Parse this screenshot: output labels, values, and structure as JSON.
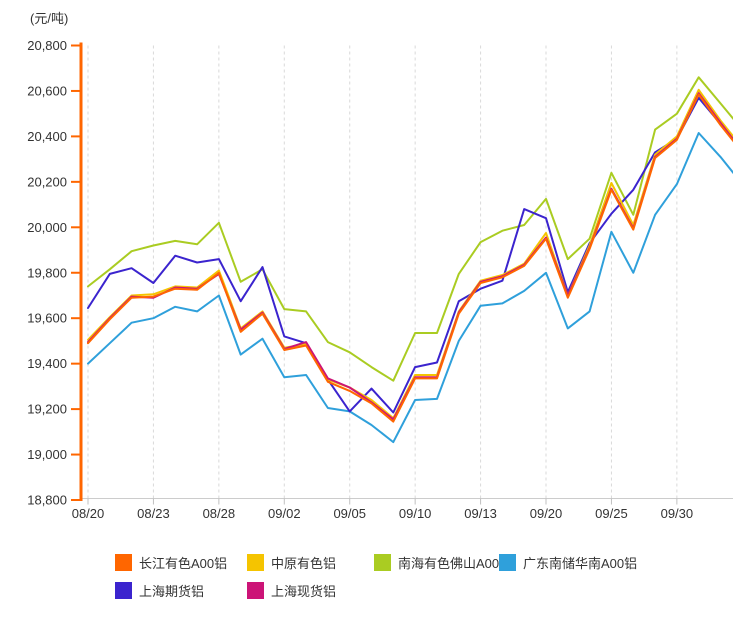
{
  "chart": {
    "unit_label": "(元/吨)"
  },
  "chart_data": {
    "type": "line",
    "title": "",
    "xlabel": "",
    "ylabel": "(元/吨)",
    "grid": "vertical-dashed",
    "legend_position": "bottom",
    "y_axis": {
      "min": 18800,
      "max": 20800,
      "step": 200,
      "tick_labels": [
        "20,800",
        "20,600",
        "20,400",
        "20,200",
        "20,000",
        "19,800",
        "19,600",
        "19,400",
        "19,200",
        "19,000",
        "18,800"
      ],
      "axis_color": "#FF6600",
      "label_color": "#333333"
    },
    "x_axis": {
      "tick_labels": [
        "08/20",
        "08/23",
        "08/28",
        "09/02",
        "09/05",
        "09/10",
        "09/13",
        "09/20",
        "09/25",
        "09/30"
      ],
      "tick_point_indices": [
        0,
        3,
        6,
        9,
        12,
        15,
        18,
        21,
        24,
        27
      ],
      "baseline_color": "#cccccc",
      "label_color": "#333333"
    },
    "n_points": 31,
    "series": [
      {
        "name": "长江有色A00铝",
        "color": "#FF6600",
        "values": [
          19490,
          19595,
          19690,
          19695,
          19730,
          19725,
          19800,
          19540,
          19620,
          19460,
          19480,
          19320,
          19280,
          19225,
          19145,
          19335,
          19335,
          19620,
          19755,
          19780,
          19830,
          19950,
          19690,
          19905,
          20165,
          19990,
          20305,
          20385,
          20585,
          20450,
          20330
        ]
      },
      {
        "name": "中原有色铝",
        "color": "#F5C400",
        "values": [
          19505,
          19605,
          19700,
          19705,
          19740,
          19735,
          19810,
          19555,
          19630,
          19470,
          19485,
          19330,
          19295,
          19240,
          19160,
          19350,
          19350,
          19630,
          19765,
          19790,
          19840,
          19975,
          19700,
          19920,
          20195,
          20010,
          20320,
          20400,
          20605,
          20470,
          20350
        ]
      },
      {
        "name": "南海有色佛山A00铝",
        "color": "#AACC22",
        "values": [
          19740,
          19815,
          19895,
          19920,
          19940,
          19925,
          20020,
          19760,
          19815,
          19640,
          19630,
          19495,
          19450,
          19385,
          19325,
          19535,
          19535,
          19795,
          19935,
          19985,
          20010,
          20125,
          19860,
          19950,
          20240,
          20055,
          20430,
          20500,
          20660,
          20545,
          20430
        ]
      },
      {
        "name": "广东南储华南A00铝",
        "color": "#2FA0DB",
        "values": [
          19400,
          19490,
          19580,
          19600,
          19650,
          19630,
          19700,
          19440,
          19510,
          19340,
          19350,
          19205,
          19190,
          19130,
          19055,
          19240,
          19245,
          19500,
          19655,
          19665,
          19720,
          19800,
          19555,
          19630,
          19980,
          19800,
          20055,
          20190,
          20415,
          20310,
          20190
        ]
      },
      {
        "name": "上海期货铝",
        "color": "#3B24CE",
        "values": [
          19645,
          19795,
          19820,
          19755,
          19875,
          19845,
          19860,
          19675,
          19825,
          19520,
          19490,
          19330,
          19190,
          19290,
          19185,
          19385,
          19405,
          19675,
          19730,
          19765,
          20080,
          20040,
          19715,
          19930,
          20060,
          20165,
          20330,
          20390,
          20570,
          20455,
          20340
        ]
      },
      {
        "name": "上海现货铝",
        "color": "#CC1477",
        "values": [
          19495,
          19600,
          19695,
          19690,
          19735,
          19730,
          19795,
          19550,
          19625,
          19465,
          19495,
          19335,
          19295,
          19230,
          19155,
          19340,
          19340,
          19625,
          19760,
          19785,
          19835,
          19955,
          19700,
          19910,
          20170,
          19995,
          20310,
          20390,
          20590,
          20460,
          20335
        ]
      }
    ],
    "legend_order_draw": [
      2,
      3,
      4,
      1,
      5,
      0
    ]
  }
}
